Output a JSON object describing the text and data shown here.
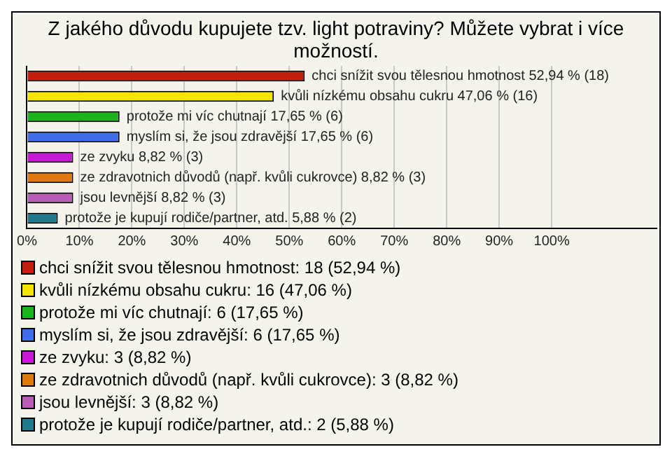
{
  "chart_data": {
    "type": "bar",
    "orientation": "horizontal",
    "stacked": true,
    "title": "Z jakého důvodu kupujete tzv. light potraviny? Můžete vybrat i více možností.",
    "categories": [
      null,
      null,
      null,
      null,
      null,
      null,
      null,
      null
    ],
    "series": [
      {
        "name": "chci snížit svou tělesnou hmotnost: 18 (52,94 %)",
        "color": "#c41e10",
        "values": [
          52.94,
          null,
          null,
          null,
          null,
          null,
          null,
          null
        ],
        "value_labels": [
          "chci snížit svou tělesnou hmotnost 52,94 % (18)",
          null,
          null,
          null,
          null,
          null,
          null,
          null
        ]
      },
      {
        "name": "kvůli nízkému obsahu cukru: 16 (47,06 %)",
        "color": "#f5e400",
        "values": [
          null,
          47.06,
          null,
          null,
          null,
          null,
          null,
          null
        ],
        "value_labels": [
          null,
          "kvůli nízkému obsahu cukru 47,06 % (16)",
          null,
          null,
          null,
          null,
          null,
          null
        ]
      },
      {
        "name": "protože mi víc chutnají: 6 (17,65 %)",
        "color": "#1cb21c",
        "values": [
          null,
          null,
          17.65,
          null,
          null,
          null,
          null,
          null
        ],
        "value_labels": [
          null,
          null,
          "protože mi víc chutnají 17,65 % (6)",
          null,
          null,
          null,
          null,
          null
        ]
      },
      {
        "name": "myslím si, že jsou zdravější: 6 (17,65 %)",
        "color": "#3f6fe8",
        "values": [
          null,
          null,
          null,
          17.65,
          null,
          null,
          null,
          null
        ],
        "value_labels": [
          null,
          null,
          null,
          "myslím si, že jsou zdravější 17,65 % (6)",
          null,
          null,
          null,
          null
        ]
      },
      {
        "name": "ze zvyku: 3 (8,82 %)",
        "color": "#c519d6",
        "values": [
          null,
          null,
          null,
          null,
          8.82,
          null,
          null,
          null
        ],
        "value_labels": [
          null,
          null,
          null,
          null,
          "ze zvyku 8,82 % (3)",
          null,
          null,
          null
        ]
      },
      {
        "name": "ze zdravotnich důvodů (např. kvůli cukrovce): 3 (8,82 %)",
        "color": "#e07a10",
        "values": [
          null,
          null,
          null,
          null,
          null,
          8.82,
          null,
          null
        ],
        "value_labels": [
          null,
          null,
          null,
          null,
          null,
          "ze zdravotnich důvodů (např. kvůli cukrovce) 8,82 % (3)",
          null,
          null
        ]
      },
      {
        "name": "jsou levnější: 3 (8,82 %)",
        "color": "#b85cb8",
        "values": [
          null,
          null,
          null,
          null,
          null,
          null,
          8.82,
          null
        ],
        "value_labels": [
          null,
          null,
          null,
          null,
          null,
          null,
          "jsou levnější 8,82 % (3)",
          null
        ]
      },
      {
        "name": "protože je kupují rodiče/partner, atd.: 2 (5,88 %)",
        "color": "#1e7a8c",
        "values": [
          null,
          null,
          null,
          null,
          null,
          null,
          null,
          5.88
        ],
        "value_labels": [
          null,
          null,
          null,
          null,
          null,
          null,
          null,
          "protože je kupují rodiče/partner, atd. 5,88 % (2)"
        ]
      }
    ],
    "xlim": [
      0,
      120
    ],
    "xticks": [
      {
        "value": 0,
        "label": "0%"
      },
      {
        "value": 10,
        "label": "10%"
      },
      {
        "value": 20,
        "label": "20%"
      },
      {
        "value": 30,
        "label": "30%"
      },
      {
        "value": 40,
        "label": "40%"
      },
      {
        "value": 50,
        "label": "50%"
      },
      {
        "value": 60,
        "label": "60%"
      },
      {
        "value": 70,
        "label": "70%"
      },
      {
        "value": 80,
        "label": "80%"
      },
      {
        "value": 90,
        "label": "90%"
      },
      {
        "value": 100,
        "label": "100%"
      }
    ],
    "grid": "x",
    "legend": "bottom"
  }
}
